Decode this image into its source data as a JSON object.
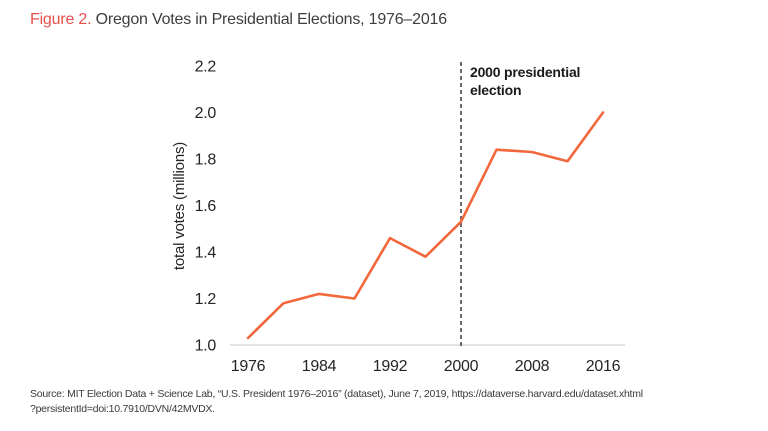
{
  "title": {
    "prefix": "Figure 2.",
    "rest": " Oregon Votes in Presidential Elections, 1976–2016"
  },
  "chart_data": {
    "type": "line",
    "title": "Oregon Votes in Presidential Elections, 1976–2016",
    "x": [
      1976,
      1980,
      1984,
      1988,
      1992,
      1996,
      2000,
      2004,
      2008,
      2012,
      2016
    ],
    "series": [
      {
        "name": "total votes",
        "values": [
          1.03,
          1.18,
          1.22,
          1.2,
          1.46,
          1.38,
          1.53,
          1.84,
          1.83,
          1.79,
          2.0
        ]
      }
    ],
    "xlabel": "",
    "ylabel": "total votes (millions)",
    "ylim": [
      1.0,
      2.2
    ],
    "xlim": [
      1976,
      2016
    ],
    "yticks": [
      "1.0",
      "1.2",
      "1.4",
      "1.6",
      "1.8",
      "2.0",
      "2.2"
    ],
    "xticks": [
      "1976",
      "1984",
      "1992",
      "2000",
      "2008",
      "2016"
    ],
    "grid": false,
    "legend_position": "none",
    "annotation": {
      "x": 2000,
      "lines": [
        "2000 presidential",
        "election"
      ],
      "marker": "dashed-vertical-line"
    }
  },
  "source": {
    "line1": "Source: MIT Election Data + Science Lab, “U.S. President 1976–2016” (dataset), June 7, 2019, https://dataverse.harvard.edu/dataset.xhtml",
    "line2": "?persistentId=doi:10.7910/DVN/42MVDX."
  },
  "colors": {
    "accent_red": "#e4504c",
    "line_orange": "#f2673c",
    "title_text": "#3d3d42",
    "tick_text": "#242424",
    "annotation_text": "#1a1a1a",
    "axis_line": "#d9d9d9",
    "dashed_line": "#5a5a5a",
    "source_text": "#3a3a3a"
  }
}
